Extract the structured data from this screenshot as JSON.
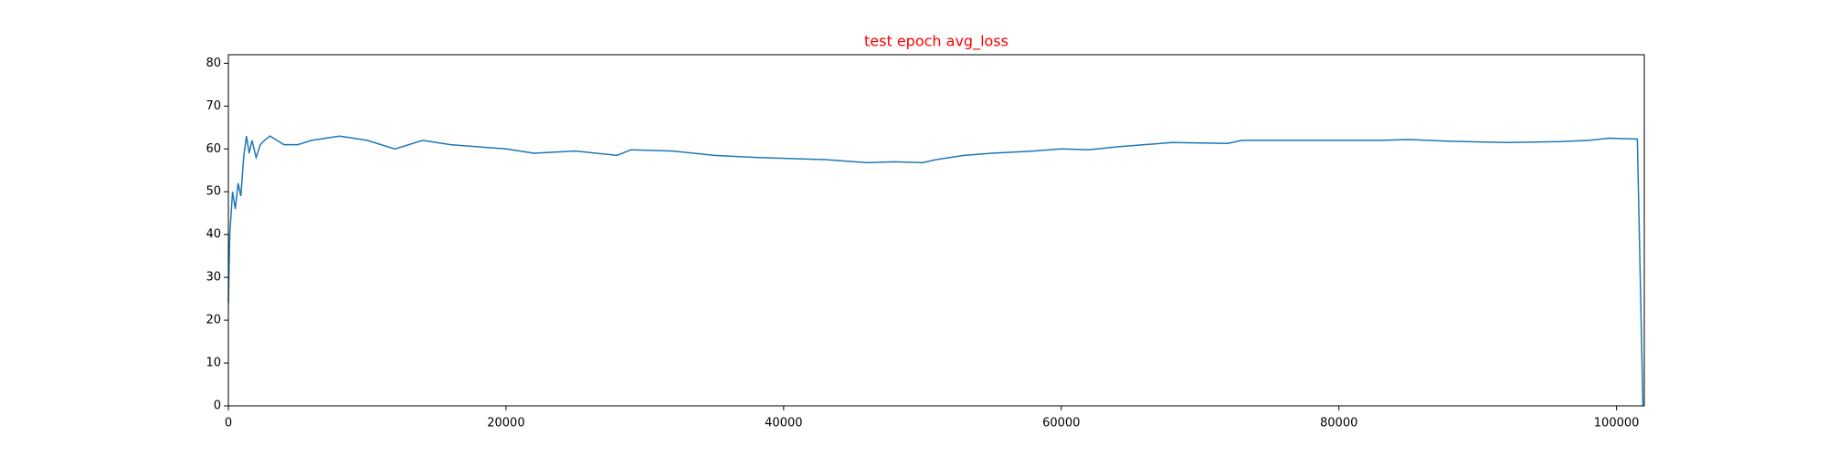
{
  "chart_data": {
    "type": "line",
    "title": "test epoch avg_loss",
    "title_color": "#ff0000",
    "x": [
      0,
      100,
      300,
      500,
      700,
      900,
      1100,
      1300,
      1500,
      1700,
      2000,
      2300,
      2600,
      3000,
      3500,
      4000,
      5000,
      6000,
      8000,
      10000,
      12000,
      14000,
      16000,
      18000,
      20000,
      22000,
      25000,
      28000,
      29000,
      32000,
      35000,
      38000,
      40000,
      43000,
      46000,
      48000,
      50000,
      51000,
      53000,
      55000,
      58000,
      60000,
      62000,
      64000,
      66000,
      68000,
      72000,
      73000,
      76000,
      80000,
      83000,
      85000,
      88000,
      92000,
      96000,
      98000,
      99500,
      101500,
      101900
    ],
    "series": [
      {
        "name": "avg_loss",
        "color": "#1f77b4",
        "values": [
          24,
          40,
          50,
          46,
          52,
          49,
          58,
          63,
          59,
          62,
          58,
          61,
          62,
          63,
          62,
          61,
          61,
          62,
          63,
          62,
          60,
          62,
          61,
          60.5,
          60,
          59,
          59.5,
          58.5,
          59.8,
          59.5,
          58.5,
          58,
          57.8,
          57.5,
          56.8,
          57,
          56.8,
          57.5,
          58.5,
          59,
          59.5,
          60,
          59.8,
          60.5,
          61,
          61.5,
          61.3,
          62,
          62,
          62,
          62,
          62.2,
          61.8,
          61.5,
          61.7,
          62,
          62.5,
          62.3,
          0
        ]
      }
    ],
    "xlim": [
      0,
      102000
    ],
    "ylim": [
      0,
      82
    ],
    "xticks": [
      0,
      20000,
      40000,
      60000,
      80000,
      100000
    ],
    "yticks": [
      0,
      10,
      20,
      30,
      40,
      50,
      60,
      70,
      80
    ]
  }
}
